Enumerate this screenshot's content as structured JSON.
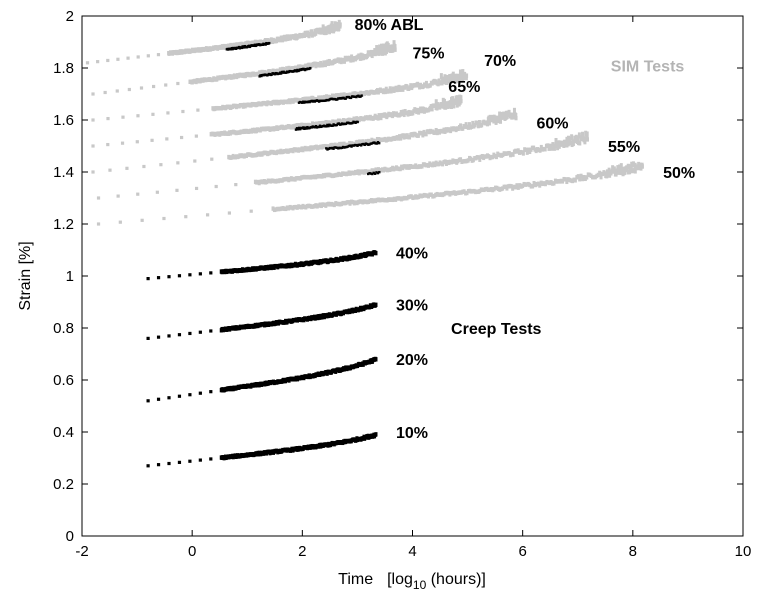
{
  "chart_data": {
    "type": "scatter",
    "xlabel": "Time",
    "xlabel_unit_prefix": "[log",
    "xlabel_unit_sub": "10",
    "xlabel_unit_suffix": " (hours)]",
    "ylabel": "Strain  [%]",
    "xlim": [
      -2,
      10
    ],
    "ylim": [
      0,
      2
    ],
    "x_ticks": [
      -2,
      0,
      2,
      4,
      6,
      8,
      10
    ],
    "y_ticks": [
      0,
      0.2,
      0.4,
      0.6,
      0.8,
      1,
      1.2,
      1.4,
      1.6,
      1.8,
      2
    ],
    "grid": false,
    "colors": {
      "sim": "#c8c8c8",
      "creep": "#000000"
    },
    "group_labels": [
      {
        "text": "SIM Tests",
        "x": 7.6,
        "y": 1.81,
        "color": "#b4b4b4"
      },
      {
        "text": "Creep Tests",
        "x": 4.7,
        "y": 0.8,
        "color": "#000000"
      }
    ],
    "series": [
      {
        "name": "80% ABL",
        "group": "sim",
        "x_start": -1.9,
        "x_end": 2.7,
        "y_start": 1.82,
        "y_end": 1.96,
        "label_x": 2.95,
        "label_y": 1.97
      },
      {
        "name": "75%",
        "group": "sim",
        "x_start": -1.8,
        "x_end": 3.7,
        "y_start": 1.7,
        "y_end": 1.88,
        "label_x": 4.0,
        "label_y": 1.86
      },
      {
        "name": "70%",
        "group": "sim",
        "x_start": -1.8,
        "x_end": 5.0,
        "y_start": 1.6,
        "y_end": 1.77,
        "label_x": 5.3,
        "label_y": 1.83
      },
      {
        "name": "65%",
        "group": "sim",
        "x_start": -1.8,
        "x_end": 4.9,
        "y_start": 1.5,
        "y_end": 1.67,
        "label_x": 4.65,
        "label_y": 1.73
      },
      {
        "name": "60%",
        "group": "sim",
        "x_start": -1.8,
        "x_end": 5.9,
        "y_start": 1.4,
        "y_end": 1.62,
        "label_x": 6.25,
        "label_y": 1.59
      },
      {
        "name": "55%",
        "group": "sim",
        "x_start": -1.7,
        "x_end": 7.2,
        "y_start": 1.3,
        "y_end": 1.53,
        "label_x": 7.55,
        "label_y": 1.5
      },
      {
        "name": "50%",
        "group": "sim",
        "x_start": -1.7,
        "x_end": 8.2,
        "y_start": 1.2,
        "y_end": 1.42,
        "label_x": 8.55,
        "label_y": 1.4
      },
      {
        "name": "40%",
        "group": "creep",
        "x_start": -0.8,
        "x_end": 3.35,
        "y_start": 0.99,
        "y_end": 1.09,
        "label_x": 3.7,
        "label_y": 1.09
      },
      {
        "name": "30%",
        "group": "creep",
        "x_start": -0.8,
        "x_end": 3.35,
        "y_start": 0.76,
        "y_end": 0.89,
        "label_x": 3.7,
        "label_y": 0.89
      },
      {
        "name": "20%",
        "group": "creep",
        "x_start": -0.8,
        "x_end": 3.35,
        "y_start": 0.52,
        "y_end": 0.68,
        "label_x": 3.7,
        "label_y": 0.68
      },
      {
        "name": "10%",
        "group": "creep",
        "x_start": -0.8,
        "x_end": 3.35,
        "y_start": 0.27,
        "y_end": 0.39,
        "label_x": 3.7,
        "label_y": 0.4
      }
    ]
  }
}
